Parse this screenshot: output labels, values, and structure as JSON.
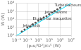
{
  "chart_data": {
    "type": "scatter",
    "xlabel": "(ρ₀uⱼ⁸D²)/c₀⁵ (W)",
    "ylabel": "W (W)",
    "log": true,
    "grid": true,
    "xlim": [
      0.001,
      10000000
    ],
    "ylim": [
      1,
      100000000
    ],
    "xticks": [
      {
        "value": 0.001,
        "label": "10⁻³"
      },
      {
        "value": 0.1,
        "label": "10⁻¹"
      },
      {
        "value": 10,
        "label": "10¹"
      },
      {
        "value": 1000,
        "label": "10³"
      },
      {
        "value": 100000,
        "label": "10⁵"
      },
      {
        "value": 10000000,
        "label": "10⁷"
      }
    ],
    "yticks": [
      {
        "value": 1,
        "label": "10⁰"
      },
      {
        "value": 100,
        "label": "10²"
      },
      {
        "value": 10000,
        "label": "10⁴"
      },
      {
        "value": 1000000,
        "label": "10⁶"
      },
      {
        "value": 100000000,
        "label": "10⁸"
      }
    ],
    "series": [
      {
        "type": "line",
        "color": "#00e0ff",
        "x": [
          0.001,
          10000000
        ],
        "values": [
          1,
          100000000
        ]
      },
      {
        "type": "scatter",
        "color": "#555555",
        "marker": "circle",
        "x": [
          0.01,
          0.03162277660168379,
          0.1,
          0.31622776601683794,
          1,
          3.1622776601683795,
          10,
          31.622776601683793,
          100,
          316.22776601683796,
          1000,
          3162.2776601683795,
          10000,
          31622.776601683792,
          100000
        ],
        "values": [
          10,
          31.622776601683793,
          100,
          199.52623149688787,
          630.957344480193,
          1584.893192461114,
          5011.872336272725,
          10000,
          31622.776601683792,
          63095.7344480193,
          199526.23149688786,
          501187.2336272725,
          1258925.4117941672,
          3162277.6601683795,
          7943282.347242822
        ]
      }
    ],
    "annotations": [
      {
        "text": "Turboréacteurs",
        "x": 10000,
        "y": 25118864.315095823,
        "color": "#222222"
      },
      {
        "text": "Jets d'avions",
        "x": 158.48931924611142,
        "y": 630957.344480193,
        "color": "#222222"
      },
      {
        "text": "Etudes sur maquettes",
        "x": 1,
        "y": 15848.931924611143,
        "color": "#222222"
      },
      {
        "text": "Jets froids",
        "x": 0.015848931924611134,
        "y": 316.22776601683796,
        "color": "#222222"
      }
    ]
  }
}
